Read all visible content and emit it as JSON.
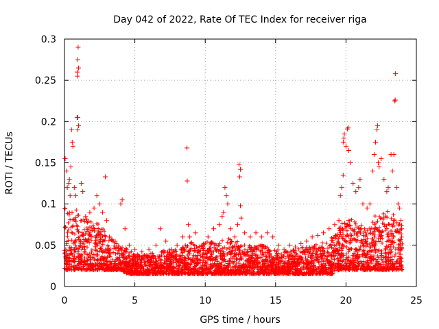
{
  "chart_data": {
    "type": "scatter",
    "title": "Day 042 of 2022, Rate Of TEC Index for receiver riga",
    "xlabel": "GPS time / hours",
    "ylabel": "ROTI / TECUs",
    "xlim": [
      0,
      25
    ],
    "ylim": [
      0,
      0.3
    ],
    "x_ticks": [
      "0",
      "5",
      "10",
      "15",
      "20",
      "25"
    ],
    "y_ticks": [
      "0",
      "0.05",
      "0.1",
      "0.15",
      "0.2",
      "0.25",
      "0.3"
    ],
    "grid": true,
    "marker": "plus",
    "colors": {
      "points": "#ff0000",
      "grid": "#a0a0a0",
      "axes": "#000000"
    },
    "points": [
      [
        0.05,
        0.155
      ],
      [
        0.15,
        0.14
      ],
      [
        0.2,
        0.12
      ],
      [
        0.3,
        0.125
      ],
      [
        0.35,
        0.13
      ],
      [
        0.4,
        0.11
      ],
      [
        0.45,
        0.145
      ],
      [
        0.5,
        0.19
      ],
      [
        0.55,
        0.175
      ],
      [
        0.6,
        0.17
      ],
      [
        0.7,
        0.12
      ],
      [
        0.8,
        0.11
      ],
      [
        0.9,
        0.26
      ],
      [
        0.92,
        0.255
      ],
      [
        0.95,
        0.275
      ],
      [
        0.97,
        0.29
      ],
      [
        1.0,
        0.265
      ],
      [
        0.9,
        0.205
      ],
      [
        0.95,
        0.205
      ],
      [
        0.95,
        0.19
      ],
      [
        1.0,
        0.195
      ],
      [
        1.2,
        0.125
      ],
      [
        1.3,
        0.115
      ],
      [
        1.5,
        0.085
      ],
      [
        1.8,
        0.09
      ],
      [
        2.1,
        0.095
      ],
      [
        2.3,
        0.11
      ],
      [
        2.5,
        0.1
      ],
      [
        2.7,
        0.09
      ],
      [
        2.9,
        0.133
      ],
      [
        3.0,
        0.08
      ],
      [
        3.2,
        0.06
      ],
      [
        3.6,
        0.055
      ],
      [
        3.9,
        0.04
      ],
      [
        4.0,
        0.1
      ],
      [
        4.1,
        0.105
      ],
      [
        4.3,
        0.07
      ],
      [
        4.6,
        0.05
      ],
      [
        5.0,
        0.045
      ],
      [
        5.5,
        0.042
      ],
      [
        6.0,
        0.045
      ],
      [
        6.5,
        0.05
      ],
      [
        6.8,
        0.07
      ],
      [
        7.2,
        0.055
      ],
      [
        7.6,
        0.045
      ],
      [
        8.0,
        0.05
      ],
      [
        8.4,
        0.06
      ],
      [
        8.7,
        0.168
      ],
      [
        8.72,
        0.128
      ],
      [
        8.8,
        0.075
      ],
      [
        8.9,
        0.06
      ],
      [
        9.3,
        0.065
      ],
      [
        9.8,
        0.05
      ],
      [
        10.2,
        0.06
      ],
      [
        10.6,
        0.07
      ],
      [
        11.0,
        0.075
      ],
      [
        11.2,
        0.085
      ],
      [
        11.3,
        0.09
      ],
      [
        11.4,
        0.12
      ],
      [
        11.5,
        0.11
      ],
      [
        11.6,
        0.1
      ],
      [
        11.8,
        0.07
      ],
      [
        12.1,
        0.06
      ],
      [
        12.3,
        0.075
      ],
      [
        12.4,
        0.148
      ],
      [
        12.45,
        0.133
      ],
      [
        12.5,
        0.142
      ],
      [
        12.5,
        0.098
      ],
      [
        12.55,
        0.083
      ],
      [
        12.8,
        0.065
      ],
      [
        13.2,
        0.06
      ],
      [
        13.6,
        0.065
      ],
      [
        14.0,
        0.06
      ],
      [
        14.4,
        0.065
      ],
      [
        14.8,
        0.06
      ],
      [
        15.2,
        0.05
      ],
      [
        15.6,
        0.045
      ],
      [
        16.0,
        0.05
      ],
      [
        16.4,
        0.048
      ],
      [
        16.8,
        0.052
      ],
      [
        17.2,
        0.055
      ],
      [
        17.6,
        0.06
      ],
      [
        18.0,
        0.062
      ],
      [
        18.4,
        0.065
      ],
      [
        18.8,
        0.07
      ],
      [
        19.2,
        0.075
      ],
      [
        19.5,
        0.08
      ],
      [
        19.6,
        0.11
      ],
      [
        19.7,
        0.12
      ],
      [
        19.8,
        0.135
      ],
      [
        19.82,
        0.175
      ],
      [
        19.85,
        0.18
      ],
      [
        19.88,
        0.185
      ],
      [
        20.0,
        0.17
      ],
      [
        20.1,
        0.191
      ],
      [
        20.15,
        0.193
      ],
      [
        20.2,
        0.165
      ],
      [
        20.3,
        0.15
      ],
      [
        20.5,
        0.125
      ],
      [
        20.7,
        0.115
      ],
      [
        20.9,
        0.12
      ],
      [
        21.0,
        0.13
      ],
      [
        21.2,
        0.1
      ],
      [
        21.5,
        0.095
      ],
      [
        21.7,
        0.1
      ],
      [
        21.9,
        0.14
      ],
      [
        22.0,
        0.16
      ],
      [
        22.1,
        0.175
      ],
      [
        22.2,
        0.19
      ],
      [
        22.25,
        0.195
      ],
      [
        22.3,
        0.15
      ],
      [
        22.35,
        0.145
      ],
      [
        22.5,
        0.155
      ],
      [
        22.7,
        0.13
      ],
      [
        22.9,
        0.115
      ],
      [
        23.0,
        0.12
      ],
      [
        23.2,
        0.16
      ],
      [
        23.3,
        0.14
      ],
      [
        23.4,
        0.16
      ],
      [
        23.45,
        0.225
      ],
      [
        23.5,
        0.226
      ],
      [
        23.52,
        0.258
      ],
      [
        23.6,
        0.12
      ],
      [
        23.7,
        0.1
      ],
      [
        23.8,
        0.095
      ],
      [
        23.9,
        0.08
      ],
      [
        23.95,
        0.07
      ]
    ],
    "band": [
      [
        0,
        0.02,
        0.095
      ],
      [
        0.5,
        0.02,
        0.1
      ],
      [
        1,
        0.02,
        0.09
      ],
      [
        1.5,
        0.02,
        0.085
      ],
      [
        2,
        0.02,
        0.08
      ],
      [
        2.5,
        0.02,
        0.075
      ],
      [
        3,
        0.02,
        0.065
      ],
      [
        3.5,
        0.02,
        0.055
      ],
      [
        4,
        0.02,
        0.05
      ],
      [
        4.5,
        0.015,
        0.045
      ],
      [
        5,
        0.015,
        0.04
      ],
      [
        5.5,
        0.015,
        0.038
      ],
      [
        6,
        0.015,
        0.04
      ],
      [
        6.5,
        0.015,
        0.042
      ],
      [
        7,
        0.015,
        0.045
      ],
      [
        7.5,
        0.015,
        0.045
      ],
      [
        8,
        0.015,
        0.045
      ],
      [
        8.5,
        0.015,
        0.05
      ],
      [
        9,
        0.015,
        0.055
      ],
      [
        9.5,
        0.015,
        0.05
      ],
      [
        10,
        0.015,
        0.055
      ],
      [
        10.5,
        0.015,
        0.055
      ],
      [
        11,
        0.015,
        0.055
      ],
      [
        11.5,
        0.015,
        0.06
      ],
      [
        12,
        0.015,
        0.055
      ],
      [
        12.5,
        0.015,
        0.055
      ],
      [
        13,
        0.015,
        0.05
      ],
      [
        13.5,
        0.015,
        0.05
      ],
      [
        14,
        0.015,
        0.05
      ],
      [
        14.5,
        0.015,
        0.048
      ],
      [
        15,
        0.015,
        0.045
      ],
      [
        15.5,
        0.015,
        0.043
      ],
      [
        16,
        0.015,
        0.043
      ],
      [
        16.5,
        0.015,
        0.045
      ],
      [
        17,
        0.015,
        0.048
      ],
      [
        17.5,
        0.015,
        0.05
      ],
      [
        18,
        0.015,
        0.052
      ],
      [
        18.5,
        0.015,
        0.055
      ],
      [
        19,
        0.015,
        0.06
      ],
      [
        19.5,
        0.02,
        0.07
      ],
      [
        20,
        0.02,
        0.085
      ],
      [
        20.5,
        0.02,
        0.08
      ],
      [
        21,
        0.02,
        0.075
      ],
      [
        21.5,
        0.02,
        0.075
      ],
      [
        22,
        0.02,
        0.085
      ],
      [
        22.5,
        0.02,
        0.09
      ],
      [
        23,
        0.02,
        0.095
      ],
      [
        23.5,
        0.02,
        0.085
      ],
      [
        24,
        0.02,
        0.075
      ]
    ]
  }
}
